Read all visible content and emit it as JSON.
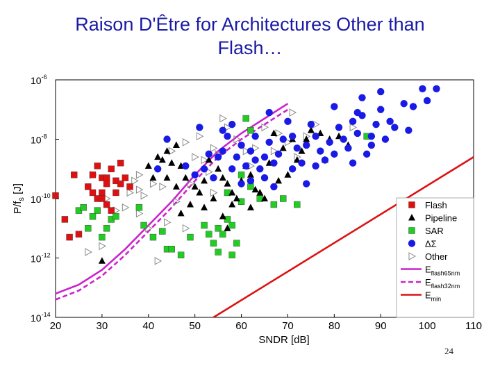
{
  "slide": {
    "title_line1": "Raison D'Être for Architectures Other than",
    "title_line2": "Flash…",
    "page_number": "24"
  },
  "colors": {
    "title": "#1a1aa6",
    "flash": "#e01010",
    "pipeline": "#000000",
    "sar": "#22cc22",
    "ds": "#1a1ae6",
    "other": "#888888",
    "e65": "#cc22cc",
    "e32": "#cc22cc",
    "emin": "#dd1111"
  },
  "chart_data": {
    "type": "scatter",
    "xlabel": "SNDR [dB]",
    "ylabel": {
      "main": "P/f",
      "sub": "s",
      "unit": " [J]"
    },
    "xlim": [
      20,
      110
    ],
    "ylim_log10": [
      -14,
      -6
    ],
    "x_ticks": [
      "20",
      "30",
      "40",
      "50",
      "60",
      "70",
      "80",
      "90",
      "100",
      "110"
    ],
    "y_ticks": [
      {
        "base": "10",
        "exp": "-6",
        "value": -6
      },
      {
        "base": "10",
        "exp": "-8",
        "value": -8
      },
      {
        "base": "10",
        "exp": "-10",
        "value": -10
      },
      {
        "base": "10",
        "exp": "-12",
        "value": -12
      },
      {
        "base": "10",
        "exp": "-14",
        "value": -14
      }
    ],
    "grid": true,
    "legend_position": "bottom-right",
    "series": [
      {
        "name": "Flash",
        "marker": "square",
        "color": "#e01010",
        "points": [
          [
            20,
            -9.9
          ],
          [
            22,
            -10.7
          ],
          [
            23,
            -11.3
          ],
          [
            24,
            -9.2
          ],
          [
            27,
            -9.6
          ],
          [
            28,
            -9.2
          ],
          [
            29,
            -8.9
          ],
          [
            30,
            -9.3
          ],
          [
            30,
            -9.8
          ],
          [
            31,
            -9.5
          ],
          [
            31,
            -10.2
          ],
          [
            32,
            -9.0
          ],
          [
            33,
            -9.4
          ],
          [
            34,
            -8.8
          ],
          [
            35,
            -9.3
          ],
          [
            25,
            -11.2
          ],
          [
            29,
            -10.0
          ],
          [
            32,
            -10.4
          ],
          [
            36,
            -9.6
          ],
          [
            28,
            -9.8
          ],
          [
            30,
            -10.0
          ],
          [
            33,
            -9.8
          ],
          [
            31,
            -9.3
          ],
          [
            34,
            -9.5
          ]
        ]
      },
      {
        "name": "Pipeline",
        "marker": "triangle",
        "color": "#000000",
        "points": [
          [
            30,
            -12.1
          ],
          [
            40,
            -8.9
          ],
          [
            42,
            -8.6
          ],
          [
            43,
            -8.7
          ],
          [
            44,
            -8.4
          ],
          [
            45,
            -8.8
          ],
          [
            46,
            -8.2
          ],
          [
            47,
            -8.9
          ],
          [
            48,
            -9.3
          ],
          [
            50,
            -9.6
          ],
          [
            51,
            -9.8
          ],
          [
            52,
            -9.4
          ],
          [
            53,
            -8.7
          ],
          [
            55,
            -9.0
          ],
          [
            56,
            -9.3
          ],
          [
            57,
            -9.5
          ],
          [
            58,
            -9.8
          ],
          [
            59,
            -10.0
          ],
          [
            60,
            -9.4
          ],
          [
            61,
            -8.9
          ],
          [
            62,
            -9.2
          ],
          [
            63,
            -9.7
          ],
          [
            65,
            -10.0
          ],
          [
            66,
            -8.8
          ],
          [
            68,
            -9.4
          ],
          [
            70,
            -9.2
          ],
          [
            72,
            -8.7
          ],
          [
            73,
            -8.4
          ],
          [
            75,
            -7.7
          ],
          [
            74,
            -8.0
          ],
          [
            77,
            -7.8
          ],
          [
            79,
            -8.0
          ],
          [
            81,
            -7.9
          ],
          [
            83,
            -8.2
          ],
          [
            78,
            -8.7
          ],
          [
            71,
            -8.0
          ],
          [
            67,
            -7.8
          ],
          [
            69,
            -8.3
          ],
          [
            64,
            -9.8
          ],
          [
            54,
            -10.0
          ],
          [
            52,
            -10.3
          ],
          [
            56,
            -10.6
          ],
          [
            58,
            -10.2
          ],
          [
            62,
            -10.3
          ],
          [
            44,
            -9.3
          ],
          [
            46,
            -9.6
          ],
          [
            47,
            -10.5
          ],
          [
            41,
            -9.3
          ],
          [
            49,
            -10.2
          ],
          [
            57,
            -11.0
          ]
        ]
      },
      {
        "name": "SAR",
        "marker": "square",
        "color": "#22cc22",
        "points": [
          [
            25,
            -10.4
          ],
          [
            26,
            -10.3
          ],
          [
            27,
            -11.0
          ],
          [
            28,
            -10.6
          ],
          [
            29,
            -10.4
          ],
          [
            30,
            -11.3
          ],
          [
            31,
            -11.0
          ],
          [
            32,
            -10.7
          ],
          [
            33,
            -10.6
          ],
          [
            38,
            -10.3
          ],
          [
            39,
            -10.9
          ],
          [
            41,
            -11.3
          ],
          [
            43,
            -11.1
          ],
          [
            44,
            -11.7
          ],
          [
            45,
            -11.7
          ],
          [
            47,
            -11.9
          ],
          [
            49,
            -11.3
          ],
          [
            52,
            -10.9
          ],
          [
            53,
            -11.2
          ],
          [
            54,
            -11.5
          ],
          [
            55,
            -11.0
          ],
          [
            56,
            -11.2
          ],
          [
            57,
            -10.7
          ],
          [
            58,
            -10.9
          ],
          [
            59,
            -11.5
          ],
          [
            60,
            -10.1
          ],
          [
            62,
            -9.6
          ],
          [
            64,
            -10.0
          ],
          [
            67,
            -10.2
          ],
          [
            69,
            -10.0
          ],
          [
            72,
            -10.2
          ],
          [
            58,
            -11.9
          ],
          [
            61,
            -7.3
          ],
          [
            62,
            -7.7
          ],
          [
            57,
            -9.8
          ],
          [
            60,
            -9.2
          ],
          [
            87,
            -7.9
          ],
          [
            55,
            -11.8
          ]
        ]
      },
      {
        "name": "ΔΣ",
        "marker": "circle",
        "color": "#1a1ae6",
        "points": [
          [
            42,
            -9.0
          ],
          [
            44,
            -8.0
          ],
          [
            48,
            -8.9
          ],
          [
            50,
            -9.2
          ],
          [
            52,
            -9.0
          ],
          [
            53,
            -8.5
          ],
          [
            55,
            -8.6
          ],
          [
            56,
            -8.4
          ],
          [
            57,
            -7.9
          ],
          [
            58,
            -7.5
          ],
          [
            59,
            -8.6
          ],
          [
            60,
            -8.2
          ],
          [
            61,
            -8.9
          ],
          [
            62,
            -8.4
          ],
          [
            63,
            -8.7
          ],
          [
            64,
            -9.0
          ],
          [
            65,
            -8.6
          ],
          [
            66,
            -8.1
          ],
          [
            67,
            -8.8
          ],
          [
            68,
            -8.5
          ],
          [
            69,
            -8.0
          ],
          [
            70,
            -7.4
          ],
          [
            71,
            -7.9
          ],
          [
            72,
            -8.3
          ],
          [
            73,
            -8.8
          ],
          [
            74,
            -8.2
          ],
          [
            75,
            -7.5
          ],
          [
            76,
            -7.9
          ],
          [
            77,
            -8.4
          ],
          [
            78,
            -8.7
          ],
          [
            79,
            -8.1
          ],
          [
            80,
            -8.5
          ],
          [
            81,
            -7.6
          ],
          [
            82,
            -8.0
          ],
          [
            83,
            -8.3
          ],
          [
            84,
            -7.4
          ],
          [
            85,
            -7.8
          ],
          [
            86,
            -7.2
          ],
          [
            87,
            -8.5
          ],
          [
            88,
            -7.9
          ],
          [
            89,
            -7.5
          ],
          [
            90,
            -7.0
          ],
          [
            91,
            -8.0
          ],
          [
            93,
            -7.6
          ],
          [
            95,
            -6.8
          ],
          [
            97,
            -6.9
          ],
          [
            100,
            -6.7
          ],
          [
            102,
            -6.3
          ],
          [
            80,
            -6.9
          ],
          [
            86,
            -6.6
          ],
          [
            90,
            -6.4
          ],
          [
            99,
            -6.3
          ],
          [
            92,
            -7.4
          ],
          [
            96,
            -7.7
          ],
          [
            84,
            -8.8
          ],
          [
            76,
            -8.9
          ],
          [
            62,
            -9.4
          ],
          [
            65,
            -9.3
          ],
          [
            67,
            -9.6
          ],
          [
            58,
            -9.0
          ],
          [
            60,
            -9.5
          ],
          [
            54,
            -9.3
          ],
          [
            71,
            -9.0
          ],
          [
            74,
            -9.5
          ],
          [
            56,
            -7.7
          ],
          [
            51,
            -7.6
          ],
          [
            63,
            -7.9
          ],
          [
            66,
            -7.1
          ],
          [
            85,
            -7.1
          ],
          [
            88,
            -8.2
          ]
        ]
      },
      {
        "name": "Other",
        "marker": "triangle-right",
        "color": "#888888",
        "points": [
          [
            28,
            -9.2
          ],
          [
            31,
            -10.0
          ],
          [
            33,
            -10.4
          ],
          [
            37,
            -9.4
          ],
          [
            38,
            -9.7
          ],
          [
            38,
            -10.5
          ],
          [
            39,
            -9.9
          ],
          [
            40,
            -11.0
          ],
          [
            41,
            -9.5
          ],
          [
            42,
            -12.1
          ],
          [
            43,
            -9.6
          ],
          [
            45,
            -8.4
          ],
          [
            46,
            -10.1
          ],
          [
            48,
            -8.1
          ],
          [
            49,
            -9.5
          ],
          [
            50,
            -8.6
          ],
          [
            51,
            -7.9
          ],
          [
            52,
            -8.7
          ],
          [
            53,
            -9.1
          ],
          [
            54,
            -8.3
          ],
          [
            55,
            -8.5
          ],
          [
            57,
            -7.6
          ],
          [
            59,
            -8.0
          ],
          [
            61,
            -8.4
          ],
          [
            63,
            -8.3
          ],
          [
            65,
            -7.6
          ],
          [
            68,
            -7.8
          ],
          [
            70,
            -8.1
          ],
          [
            72,
            -8.6
          ],
          [
            74,
            -7.9
          ],
          [
            76,
            -7.5
          ],
          [
            30,
            -11.6
          ],
          [
            27,
            -11.8
          ],
          [
            35,
            -10.3
          ],
          [
            44,
            -10.8
          ],
          [
            48,
            -11.0
          ],
          [
            36,
            -9.8
          ],
          [
            56,
            -7.3
          ],
          [
            62,
            -8.9
          ],
          [
            67,
            -8.4
          ],
          [
            54,
            -9.8
          ],
          [
            71,
            -7.1
          ],
          [
            84,
            -7.6
          ],
          [
            38,
            -9.2
          ]
        ]
      }
    ],
    "lines": [
      {
        "name": "Eflash65nm",
        "label_main": "E",
        "label_sub": "flash65nm",
        "style": "solid",
        "color": "#cc22cc",
        "points": [
          [
            20,
            -13.2
          ],
          [
            25,
            -12.9
          ],
          [
            30,
            -12.4
          ],
          [
            35,
            -11.7
          ],
          [
            40,
            -10.9
          ],
          [
            45,
            -10.1
          ],
          [
            50,
            -9.2
          ],
          [
            55,
            -8.4
          ],
          [
            60,
            -7.8
          ],
          [
            65,
            -7.3
          ],
          [
            70,
            -6.8
          ]
        ]
      },
      {
        "name": "Eflash32nm",
        "label_main": "E",
        "label_sub": "flash32nm",
        "style": "dashed",
        "color": "#cc22cc",
        "points": [
          [
            20,
            -13.4
          ],
          [
            25,
            -13.1
          ],
          [
            30,
            -12.6
          ],
          [
            35,
            -11.9
          ],
          [
            40,
            -11.1
          ],
          [
            45,
            -10.3
          ],
          [
            50,
            -9.4
          ],
          [
            55,
            -8.6
          ],
          [
            60,
            -8.0
          ],
          [
            65,
            -7.5
          ],
          [
            70,
            -7.0
          ]
        ]
      },
      {
        "name": "Emin",
        "label_main": "E",
        "label_sub": "min",
        "style": "solid",
        "color": "#dd1111",
        "points": [
          [
            54,
            -14.0
          ],
          [
            110,
            -8.6
          ]
        ]
      }
    ]
  }
}
